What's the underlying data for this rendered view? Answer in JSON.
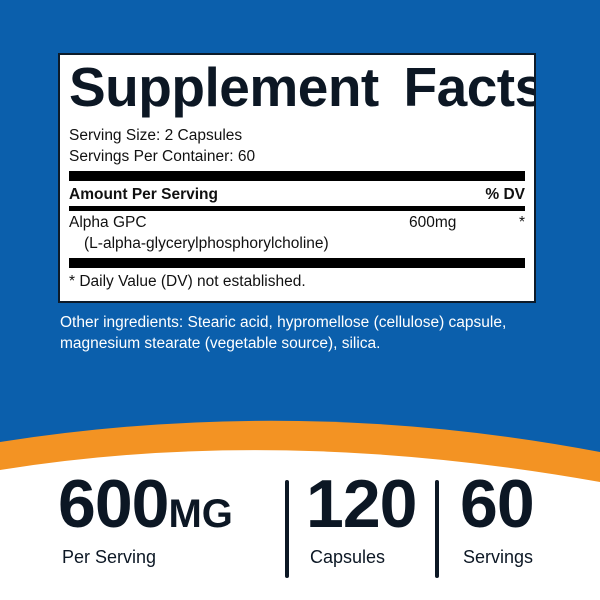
{
  "colors": {
    "background_blue": "#0b5fac",
    "accent_orange": "#f39323",
    "text_dark": "#0c1724"
  },
  "facts": {
    "title": "Supplement Facts",
    "serving_size": "Serving Size: 2 Capsules",
    "servings_per_container": "Servings Per Container: 60",
    "amount_header": "Amount Per Serving",
    "dv_header": "% DV",
    "ingredient": {
      "name": "Alpha GPC",
      "subname": "(L-alpha-glycerylphosphorylcholine)",
      "amount": "600mg",
      "dv": "*"
    },
    "footnote": "* Daily Value (DV) not established."
  },
  "other_ingredients": {
    "line1": "Other ingredients: Stearic acid, hypromellose (cellulose) capsule,",
    "line2": "magnesium stearate (vegetable source), silica."
  },
  "stats": [
    {
      "value": "600",
      "unit": "MG",
      "label": "Per Serving"
    },
    {
      "value": "120",
      "label": "Capsules"
    },
    {
      "value": "60",
      "label": "Servings"
    }
  ]
}
